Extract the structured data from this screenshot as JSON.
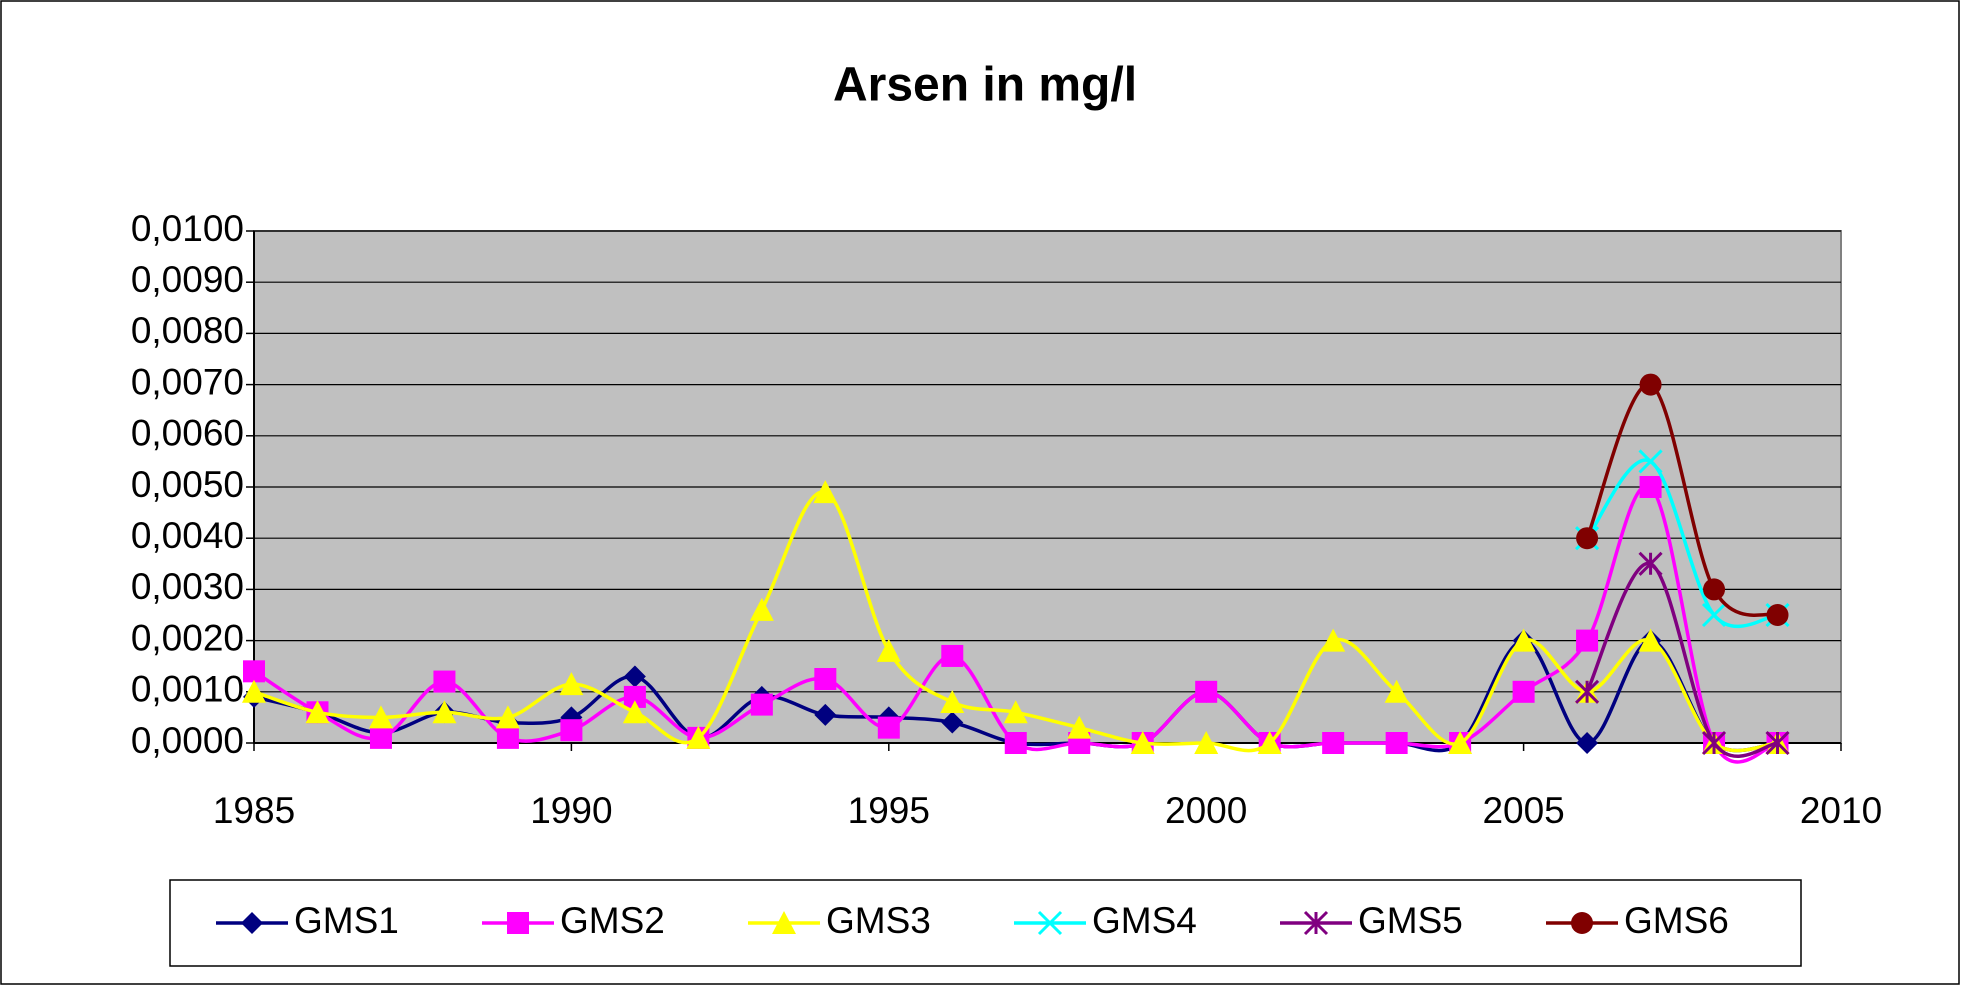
{
  "chart_data": {
    "type": "line",
    "title": "Arsen in mg/l",
    "xlim": [
      1985,
      2010
    ],
    "xticks": [
      1985,
      1990,
      1995,
      2000,
      2005,
      2010
    ],
    "ylim": [
      0,
      0.01
    ],
    "yticks": [
      {
        "value": 0,
        "label": "0,0000"
      },
      {
        "value": 0.001,
        "label": "0,0010"
      },
      {
        "value": 0.002,
        "label": "0,0020"
      },
      {
        "value": 0.003,
        "label": "0,0030"
      },
      {
        "value": 0.004,
        "label": "0,0040"
      },
      {
        "value": 0.005,
        "label": "0,0050"
      },
      {
        "value": 0.006,
        "label": "0,0060"
      },
      {
        "value": 0.007,
        "label": "0,0070"
      },
      {
        "value": 0.008,
        "label": "0,0080"
      },
      {
        "value": 0.009,
        "label": "0,0090"
      },
      {
        "value": 0.01,
        "label": "0,0100"
      }
    ],
    "grid": true,
    "legend": "bottom",
    "smooth": true,
    "series": [
      {
        "name": "GMS1",
        "color": "#000080",
        "marker": "diamond",
        "x": [
          1985,
          1986,
          1987,
          1988,
          1989,
          1990,
          1991,
          1992,
          1993,
          1994,
          1995,
          1996,
          1997,
          1998,
          1999,
          2000,
          2001,
          2002,
          2003,
          2004,
          2005,
          2006,
          2007,
          2008,
          2009
        ],
        "values": [
          0.0009,
          0.0006,
          0.0002,
          0.0006,
          0.0004,
          0.0005,
          0.0013,
          0.0001,
          0.0009,
          0.00055,
          0.0005,
          0.0004,
          0,
          0,
          0,
          0.001,
          0,
          0,
          0,
          0,
          0.002,
          0,
          0.002,
          0,
          0
        ]
      },
      {
        "name": "GMS2",
        "color": "#FF00FF",
        "marker": "square",
        "x": [
          1985,
          1986,
          1987,
          1988,
          1989,
          1990,
          1991,
          1992,
          1993,
          1994,
          1995,
          1996,
          1997,
          1998,
          1999,
          2000,
          2001,
          2002,
          2003,
          2004,
          2005,
          2006,
          2007,
          2008,
          2009
        ],
        "values": [
          0.0014,
          0.0006,
          0.0001,
          0.0012,
          0.0001,
          0.00025,
          0.0009,
          0.0001,
          0.00075,
          0.00125,
          0.0003,
          0.0017,
          0,
          0,
          0,
          0.001,
          0,
          0,
          0,
          0,
          0.001,
          0.002,
          0.005,
          0,
          0
        ]
      },
      {
        "name": "GMS3",
        "color": "#FFFF00",
        "marker": "triangle",
        "x": [
          1985,
          1986,
          1987,
          1988,
          1989,
          1990,
          1991,
          1992,
          1993,
          1994,
          1995,
          1996,
          1997,
          1998,
          1999,
          2000,
          2001,
          2002,
          2003,
          2004,
          2005,
          2006,
          2007,
          2008,
          2009
        ],
        "values": [
          0.001,
          0.0006,
          0.0005,
          0.0006,
          0.0005,
          0.00115,
          0.0006,
          0.0001,
          0.0026,
          0.0049,
          0.0018,
          0.0008,
          0.0006,
          0.0003,
          0,
          0,
          0,
          0.002,
          0.001,
          0,
          0.002,
          0.001,
          0.002,
          0,
          0
        ]
      },
      {
        "name": "GMS4",
        "color": "#00FFFF",
        "marker": "x",
        "x": [
          2006,
          2007,
          2008,
          2009
        ],
        "values": [
          0.004,
          0.0055,
          0.0025,
          0.0025
        ]
      },
      {
        "name": "GMS5",
        "color": "#800080",
        "marker": "star",
        "x": [
          2006,
          2007,
          2008,
          2009
        ],
        "values": [
          0.001,
          0.0035,
          0,
          0
        ]
      },
      {
        "name": "GMS6",
        "color": "#800000",
        "marker": "circle",
        "x": [
          2006,
          2007,
          2008,
          2009
        ],
        "values": [
          0.004,
          0.007,
          0.003,
          0.0025
        ]
      }
    ]
  }
}
